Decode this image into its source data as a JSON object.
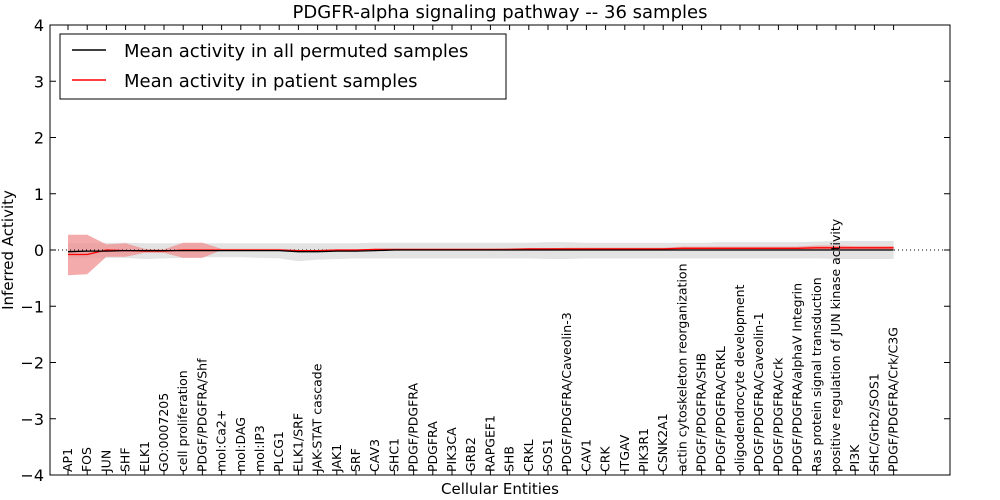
{
  "chart_data": {
    "type": "line",
    "title": "PDGFR-alpha signaling pathway -- 36 samples",
    "xlabel": "Cellular Entities",
    "ylabel": "Inferred Activity",
    "ylim": [
      -4,
      4
    ],
    "yticks": [
      "−4",
      "−3",
      "−2",
      "−1",
      "0",
      "1",
      "2",
      "3",
      "4"
    ],
    "ytick_values": [
      -4,
      -3,
      -2,
      -1,
      0,
      1,
      2,
      3,
      4
    ],
    "grid": false,
    "legend_position": "top-left",
    "categories": [
      "AP1",
      "FOS",
      "JUN",
      "SHF",
      "ELK1",
      "GO:0007205",
      "cell proliferation",
      "PDGF/PDGFRA/Shf",
      "mol:Ca2+",
      "mol:DAG",
      "mol:IP3",
      "PLCG1",
      "ELK1/SRF",
      "JAK-STAT cascade",
      "JAK1",
      "SRF",
      "CAV3",
      "SHC1",
      "PDGF/PDGFRA",
      "PDGFRA",
      "PIK3CA",
      "GRB2",
      "RAPGEF1",
      "SHB",
      "CRKL",
      "SOS1",
      "PDGF/PDGFRA/Caveolin-3",
      "CAV1",
      "CRK",
      "ITGAV",
      "PIK3R1",
      "CSNK2A1",
      "actin cytoskeleton reorganization",
      "PDGF/PDGFRA/SHB",
      "PDGF/PDGFRA/CRKL",
      "oligodendrocyte development",
      "PDGF/PDGFRA/Caveolin-1",
      "PDGF/PDGFRA/Crk",
      "PDGF/PDGFRA/alphaV Integrin",
      "Ras protein signal transduction",
      "positive regulation of JUN kinase activity",
      "PI3K",
      "SHC/Grb2/SOS1",
      "PDGF/PDGFRA/Crk/C3G"
    ],
    "series": [
      {
        "name": "Mean activity in all permuted samples",
        "color": "#000000",
        "band_color": "#cccccc",
        "values": [
          -0.03,
          -0.02,
          -0.02,
          -0.01,
          -0.01,
          -0.01,
          -0.01,
          -0.01,
          -0.01,
          -0.01,
          -0.01,
          -0.01,
          -0.03,
          -0.03,
          -0.02,
          -0.02,
          -0.01,
          0.0,
          0.0,
          0.0,
          0.0,
          0.0,
          0.0,
          0.0,
          0.0,
          0.0,
          0.0,
          0.0,
          0.0,
          0.0,
          0.0,
          0.0,
          0.0,
          0.0,
          0.0,
          0.0,
          0.0,
          0.0,
          0.0,
          0.0,
          0.0,
          0.0,
          0.0,
          0.0
        ],
        "lower": [
          -0.15,
          -0.14,
          -0.14,
          -0.14,
          -0.16,
          -0.15,
          -0.14,
          -0.13,
          -0.13,
          -0.13,
          -0.14,
          -0.15,
          -0.2,
          -0.17,
          -0.16,
          -0.15,
          -0.15,
          -0.15,
          -0.15,
          -0.15,
          -0.15,
          -0.15,
          -0.15,
          -0.15,
          -0.15,
          -0.16,
          -0.16,
          -0.15,
          -0.15,
          -0.15,
          -0.15,
          -0.15,
          -0.15,
          -0.15,
          -0.15,
          -0.15,
          -0.15,
          -0.15,
          -0.15,
          -0.15,
          -0.16,
          -0.16,
          -0.16,
          -0.16
        ],
        "upper": [
          0.12,
          0.12,
          0.13,
          0.13,
          0.12,
          0.12,
          0.12,
          0.12,
          0.12,
          0.12,
          0.12,
          0.12,
          0.12,
          0.12,
          0.12,
          0.12,
          0.13,
          0.13,
          0.13,
          0.13,
          0.13,
          0.13,
          0.13,
          0.13,
          0.13,
          0.14,
          0.14,
          0.13,
          0.13,
          0.13,
          0.13,
          0.13,
          0.13,
          0.13,
          0.14,
          0.14,
          0.14,
          0.14,
          0.14,
          0.15,
          0.16,
          0.16,
          0.16,
          0.16
        ]
      },
      {
        "name": "Mean activity in patient samples",
        "color": "#ff0000",
        "band_color": "#ef8f8f",
        "values": [
          -0.08,
          -0.08,
          0.0,
          -0.01,
          -0.02,
          -0.02,
          0.0,
          0.0,
          0.0,
          0.0,
          0.0,
          0.0,
          -0.01,
          -0.01,
          0.0,
          0.0,
          0.01,
          0.01,
          0.01,
          0.01,
          0.01,
          0.01,
          0.01,
          0.01,
          0.02,
          0.02,
          0.02,
          0.02,
          0.02,
          0.02,
          0.02,
          0.02,
          0.03,
          0.03,
          0.03,
          0.03,
          0.03,
          0.03,
          0.03,
          0.04,
          0.04,
          0.04,
          0.04,
          0.04
        ],
        "lower": [
          -0.45,
          -0.43,
          -0.12,
          -0.12,
          -0.05,
          -0.05,
          -0.14,
          -0.14,
          0.0,
          0.0,
          0.0,
          0.0,
          -0.01,
          -0.01,
          0.0,
          0.0,
          0.0,
          0.0,
          0.0,
          0.0,
          0.0,
          0.0,
          0.0,
          0.0,
          0.0,
          0.0,
          0.0,
          0.0,
          0.0,
          0.0,
          0.0,
          0.0,
          0.0,
          0.0,
          0.0,
          0.0,
          0.0,
          0.0,
          0.0,
          0.0,
          0.0,
          0.0,
          0.0,
          0.0
        ],
        "upper": [
          0.27,
          0.27,
          0.1,
          0.12,
          0.02,
          0.01,
          0.13,
          0.13,
          0.02,
          0.02,
          0.02,
          0.02,
          0.0,
          0.0,
          0.01,
          0.01,
          0.02,
          0.02,
          0.02,
          0.02,
          0.02,
          0.02,
          0.02,
          0.03,
          0.03,
          0.03,
          0.04,
          0.04,
          0.04,
          0.04,
          0.04,
          0.04,
          0.06,
          0.06,
          0.06,
          0.06,
          0.06,
          0.06,
          0.06,
          0.08,
          0.08,
          0.07,
          0.07,
          0.07
        ]
      }
    ],
    "zero_line": "dotted"
  }
}
